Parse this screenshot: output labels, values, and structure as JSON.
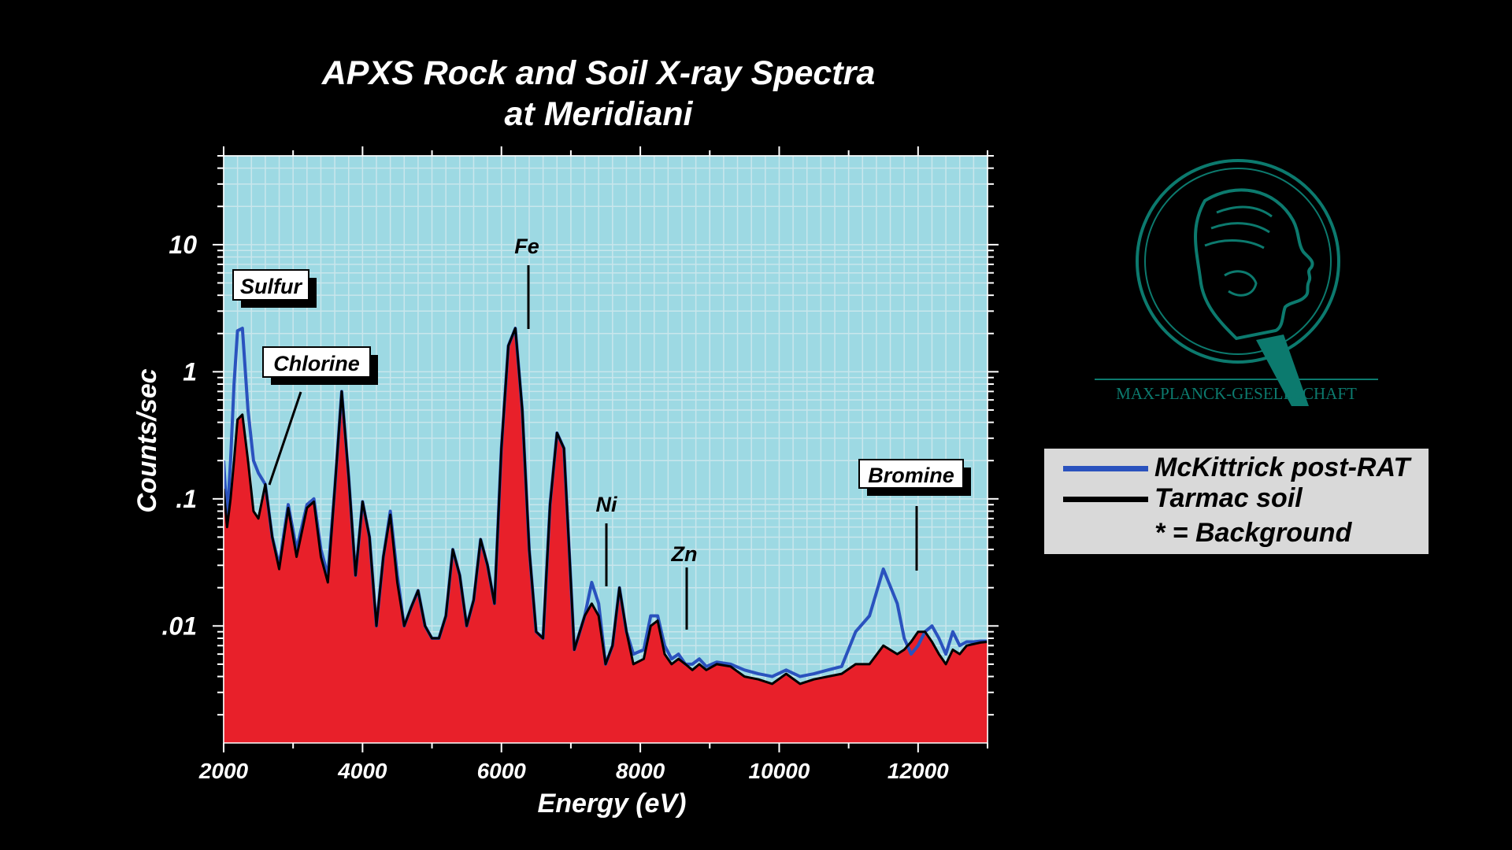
{
  "chart_data": {
    "type": "area",
    "title": "APXS Rock and Soil X-ray Spectra",
    "subtitle": "at Meridiani",
    "xlabel": "Energy (eV)",
    "ylabel": "Counts/sec",
    "xlim": [
      2000,
      13000
    ],
    "ylim": [
      0.0012,
      50
    ],
    "yscale": "log",
    "x_ticks": [
      2000,
      4000,
      6000,
      8000,
      10000,
      12000
    ],
    "x_tick_labels": [
      "2000",
      "4000",
      "6000",
      "8000",
      "10000",
      "12000"
    ],
    "y_ticks": [
      10,
      1,
      0.1,
      0.01
    ],
    "y_tick_labels": [
      "10",
      "1",
      ".1",
      ".01"
    ],
    "series": [
      {
        "name": "McKittrick post-RAT",
        "color": "#2a52be",
        "x": [
          2000,
          2050,
          2100,
          2150,
          2200,
          2270,
          2350,
          2430,
          2500,
          2600,
          2700,
          2800,
          2930,
          3050,
          3200,
          3300,
          3400,
          3500,
          3600,
          3700,
          3800,
          3900,
          4000,
          4100,
          4200,
          4300,
          4400,
          4500,
          4600,
          4700,
          4800,
          4900,
          5000,
          5100,
          5200,
          5300,
          5400,
          5500,
          5600,
          5700,
          5800,
          5900,
          6000,
          6100,
          6200,
          6300,
          6400,
          6500,
          6600,
          6700,
          6800,
          6900,
          7050,
          7200,
          7300,
          7400,
          7500,
          7600,
          7700,
          7800,
          7900,
          8050,
          8150,
          8250,
          8350,
          8450,
          8550,
          8650,
          8750,
          8850,
          8950,
          9100,
          9300,
          9500,
          9700,
          9900,
          10100,
          10300,
          10500,
          10700,
          10900,
          11100,
          11300,
          11500,
          11700,
          11800,
          11900,
          12000,
          12100,
          12200,
          12300,
          12400,
          12500,
          12600,
          12700,
          12800,
          12900,
          13000
        ],
        "values": [
          0.2,
          0.07,
          0.2,
          0.8,
          2.1,
          2.2,
          0.5,
          0.2,
          0.16,
          0.13,
          0.05,
          0.03,
          0.09,
          0.04,
          0.09,
          0.1,
          0.04,
          0.025,
          0.12,
          0.7,
          0.15,
          0.025,
          0.095,
          0.05,
          0.01,
          0.035,
          0.08,
          0.025,
          0.01,
          0.014,
          0.019,
          0.01,
          0.008,
          0.008,
          0.012,
          0.04,
          0.025,
          0.01,
          0.016,
          0.048,
          0.03,
          0.015,
          0.25,
          1.6,
          2.2,
          0.5,
          0.04,
          0.009,
          0.008,
          0.09,
          0.33,
          0.25,
          0.0065,
          0.012,
          0.022,
          0.015,
          0.005,
          0.007,
          0.02,
          0.009,
          0.006,
          0.0065,
          0.012,
          0.012,
          0.007,
          0.0055,
          0.006,
          0.005,
          0.005,
          0.0055,
          0.0048,
          0.0052,
          0.005,
          0.0045,
          0.0042,
          0.004,
          0.0045,
          0.004,
          0.0042,
          0.0045,
          0.0048,
          0.009,
          0.012,
          0.028,
          0.015,
          0.008,
          0.006,
          0.007,
          0.009,
          0.01,
          0.008,
          0.006,
          0.009,
          0.007,
          0.0075,
          0.0075,
          0.0076,
          0.0076
        ]
      },
      {
        "name": "Tarmac soil",
        "color": "#000000",
        "x": [
          2000,
          2050,
          2100,
          2150,
          2200,
          2270,
          2350,
          2430,
          2500,
          2600,
          2700,
          2800,
          2930,
          3050,
          3200,
          3300,
          3400,
          3500,
          3600,
          3700,
          3800,
          3900,
          4000,
          4100,
          4200,
          4300,
          4400,
          4500,
          4600,
          4700,
          4800,
          4900,
          5000,
          5100,
          5200,
          5300,
          5400,
          5500,
          5600,
          5700,
          5800,
          5900,
          6000,
          6100,
          6200,
          6300,
          6400,
          6500,
          6600,
          6700,
          6800,
          6900,
          7050,
          7200,
          7300,
          7400,
          7500,
          7600,
          7700,
          7800,
          7900,
          8050,
          8150,
          8250,
          8350,
          8450,
          8550,
          8650,
          8750,
          8850,
          8950,
          9100,
          9300,
          9500,
          9700,
          9900,
          10100,
          10300,
          10500,
          10700,
          10900,
          11100,
          11300,
          11500,
          11700,
          11800,
          11900,
          12000,
          12100,
          12200,
          12300,
          12400,
          12500,
          12600,
          12700,
          12800,
          12900,
          13000
        ],
        "values": [
          0.12,
          0.06,
          0.1,
          0.2,
          0.42,
          0.46,
          0.2,
          0.08,
          0.07,
          0.13,
          0.05,
          0.028,
          0.085,
          0.035,
          0.085,
          0.095,
          0.035,
          0.022,
          0.12,
          0.7,
          0.15,
          0.025,
          0.095,
          0.05,
          0.01,
          0.035,
          0.075,
          0.022,
          0.01,
          0.014,
          0.019,
          0.01,
          0.008,
          0.008,
          0.012,
          0.04,
          0.025,
          0.01,
          0.016,
          0.048,
          0.03,
          0.015,
          0.25,
          1.6,
          2.2,
          0.5,
          0.04,
          0.009,
          0.008,
          0.09,
          0.33,
          0.25,
          0.0065,
          0.012,
          0.015,
          0.012,
          0.005,
          0.007,
          0.02,
          0.009,
          0.005,
          0.0055,
          0.01,
          0.011,
          0.006,
          0.005,
          0.0055,
          0.005,
          0.0045,
          0.005,
          0.0045,
          0.005,
          0.0048,
          0.004,
          0.0038,
          0.0035,
          0.0042,
          0.0035,
          0.0038,
          0.004,
          0.0042,
          0.005,
          0.005,
          0.007,
          0.006,
          0.0065,
          0.0075,
          0.009,
          0.009,
          0.0075,
          0.006,
          0.005,
          0.0065,
          0.006,
          0.007,
          0.0072,
          0.0074,
          0.0075
        ]
      }
    ],
    "fill_color": "#e8202a",
    "plot_background": "#9dd9e3",
    "annotations": [
      {
        "text": "Sulfur",
        "boxed": true
      },
      {
        "text": "Chlorine",
        "boxed": true
      },
      {
        "text": "Fe",
        "boxed": false
      },
      {
        "text": "Ni",
        "boxed": false
      },
      {
        "text": "Zn",
        "boxed": false
      },
      {
        "text": "Bromine",
        "boxed": true
      }
    ]
  },
  "legend": {
    "items": [
      {
        "label": "McKittrick post-RAT",
        "color": "#2a52be"
      },
      {
        "label": "Tarmac soil",
        "color": "#000000"
      }
    ],
    "note": "* = Background"
  },
  "logo": {
    "text": "MAX-PLANCK-GESELLSCHAFT",
    "color": "#0c7a6e"
  }
}
